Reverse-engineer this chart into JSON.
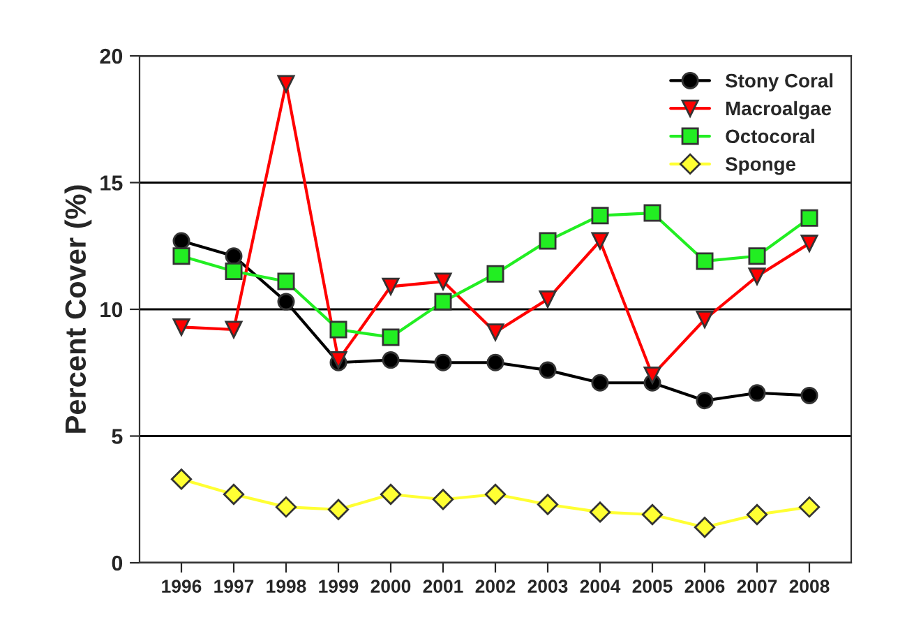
{
  "chart_data": {
    "type": "line",
    "ylabel": "Percent Cover (%)",
    "categories": [
      "1996",
      "1997",
      "1998",
      "1999",
      "2000",
      "2001",
      "2002",
      "2003",
      "2004",
      "2005",
      "2006",
      "2007",
      "2008"
    ],
    "series": [
      {
        "name": "Stony Coral",
        "color": "#000000",
        "marker": "circle",
        "values": [
          12.7,
          12.1,
          10.3,
          7.9,
          8.0,
          7.9,
          7.9,
          7.6,
          7.1,
          7.1,
          6.4,
          6.7,
          6.6
        ]
      },
      {
        "name": "Macroalgae",
        "color": "#ff0000",
        "marker": "triangle",
        "values": [
          9.3,
          9.2,
          18.9,
          8.0,
          10.9,
          11.1,
          9.1,
          10.4,
          12.7,
          7.4,
          9.6,
          11.3,
          12.6
        ]
      },
      {
        "name": "Octocoral",
        "color": "#22ee22",
        "marker": "square",
        "values": [
          12.1,
          11.5,
          11.1,
          9.2,
          8.9,
          10.3,
          11.4,
          12.7,
          13.7,
          13.8,
          11.9,
          12.1,
          13.6
        ]
      },
      {
        "name": "Sponge",
        "color": "#ffff33",
        "marker": "diamond",
        "values": [
          3.3,
          2.7,
          2.2,
          2.1,
          2.7,
          2.5,
          2.7,
          2.3,
          2.0,
          1.9,
          1.4,
          1.9,
          2.2
        ]
      }
    ],
    "ylim": [
      0,
      20
    ],
    "yticks": [
      0,
      5,
      10,
      15,
      20
    ],
    "grid": "y",
    "legend": "top right",
    "line_style": "solid"
  }
}
